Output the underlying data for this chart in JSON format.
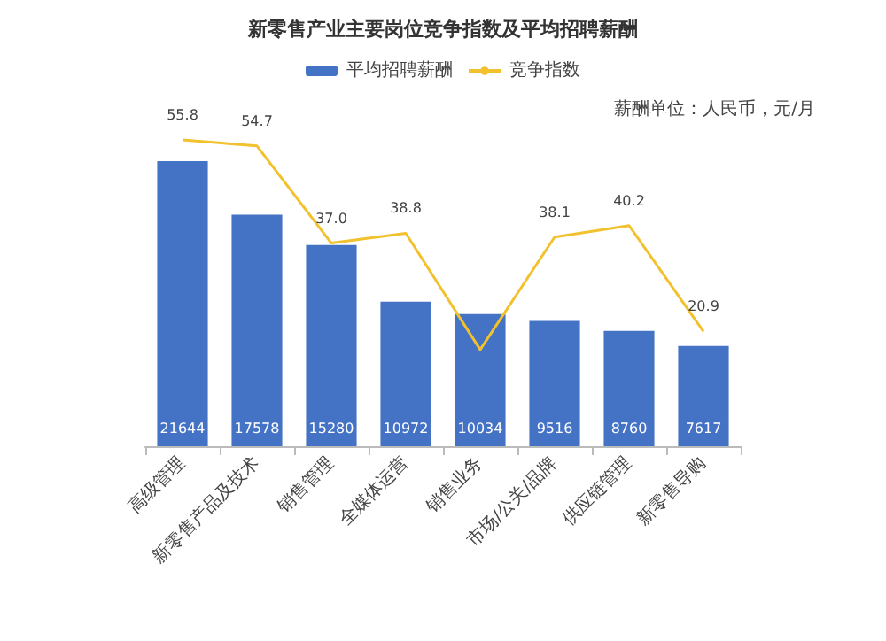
{
  "chart_data": {
    "type": "bar",
    "title": "新零售产业主要岗位竞争指数及平均招聘薪酬",
    "categories": [
      "高级管理",
      "新零售产品及技术",
      "销售管理",
      "全媒体运营",
      "销售业务",
      "市场/公关/品牌",
      "供应链管理",
      "新零售导购"
    ],
    "series": [
      {
        "name": "平均招聘薪酬",
        "color": "#4472c4",
        "values": [
          21644,
          17578,
          15280,
          10972,
          10034,
          9516,
          8760,
          7617
        ],
        "data_labels": true
      },
      {
        "name": "竞争指数",
        "type": "line",
        "axis": "y2",
        "color": "#f2c12e",
        "values": [
          55.8,
          54.7,
          37.0,
          38.8,
          17.6,
          38.1,
          40.2,
          20.9
        ],
        "value_labels": [
          "55.8",
          "54.7",
          "37.0",
          "38.8",
          null,
          "38.1",
          "40.2",
          "20.9"
        ]
      }
    ],
    "annotations": [
      "薪酬单位：人民币，元/月"
    ],
    "legend": "top",
    "grid": false,
    "marker": "none"
  }
}
